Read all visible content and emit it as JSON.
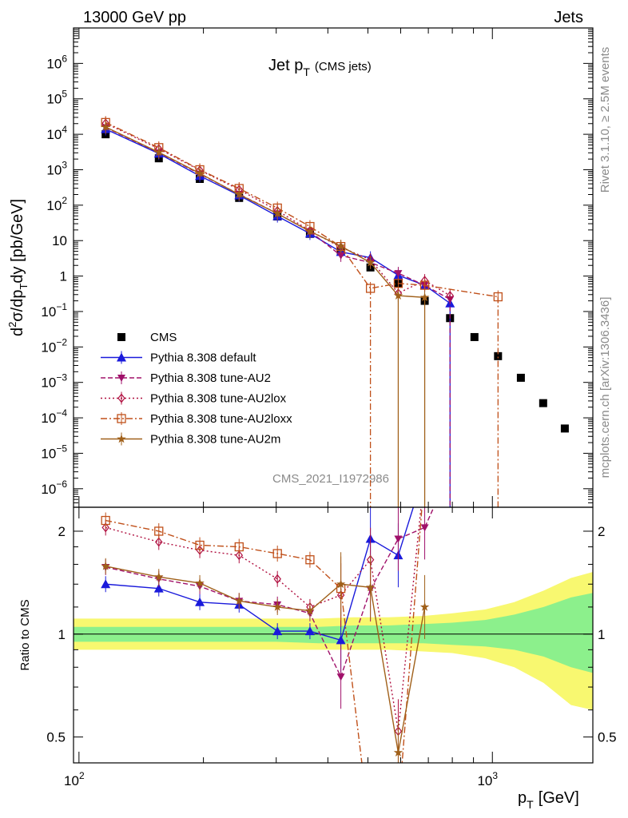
{
  "header": {
    "left": "13000 GeV pp",
    "right": "Jets"
  },
  "side": {
    "rivet": "Rivet 3.1.10, ≥ 2.5M events",
    "mcplots": "mcplots.cern.ch [arXiv:1306.3436]"
  },
  "watermark": "CMS_2021_I1972986",
  "colors": {
    "data": "#000000",
    "default": "#1a1adb",
    "au2": "#a0106a",
    "au2lox": "#b01040",
    "au2loxx": "#c0501a",
    "au2m": "#a0601a",
    "band_inner": "#8cf08c",
    "band_outer": "#f8f870"
  },
  "chart_data": [
    {
      "type": "line",
      "title_main": "Jet p",
      "title_sub": "T",
      "title_extra": "(CMS jets)",
      "ylabel": "d²σ/dp_T dy [pb/GeV]",
      "ylabel_parts": {
        "a": "d",
        "b": "2",
        "c": "σ/dp",
        "d": "T",
        "e": "dy [pb/GeV]"
      },
      "xscale": "log",
      "yscale": "log",
      "xlim": [
        97,
        1750
      ],
      "ylim": [
        3e-07,
        10000000.0
      ],
      "yticks": [
        {
          "v": 1e-06,
          "base": "10",
          "exp": "−6"
        },
        {
          "v": 1e-05,
          "base": "10",
          "exp": "−5"
        },
        {
          "v": 0.0001,
          "base": "10",
          "exp": "−4"
        },
        {
          "v": 0.001,
          "base": "10",
          "exp": "−3"
        },
        {
          "v": 0.01,
          "base": "10",
          "exp": "−2"
        },
        {
          "v": 0.1,
          "base": "10",
          "exp": "−1"
        },
        {
          "v": 1,
          "base": "1",
          "exp": ""
        },
        {
          "v": 10,
          "base": "10",
          "exp": ""
        },
        {
          "v": 100,
          "base": "10",
          "exp": "2"
        },
        {
          "v": 1000,
          "base": "10",
          "exp": "3"
        },
        {
          "v": 10000,
          "base": "10",
          "exp": "4"
        },
        {
          "v": 100000,
          "base": "10",
          "exp": "5"
        },
        {
          "v": 1000000,
          "base": "10",
          "exp": "6"
        }
      ],
      "legend_position": "bottom-left",
      "series": [
        {
          "name": "CMS",
          "key": "data",
          "color": "#000000",
          "points": [
            [
              116,
              10000.0
            ],
            [
              156,
              2100.0
            ],
            [
              196,
              550.0
            ],
            [
              244,
              160.0
            ],
            [
              302,
              48
            ],
            [
              362,
              15.5
            ],
            [
              430,
              5.0
            ],
            [
              507,
              1.75
            ],
            [
              592,
              0.62
            ],
            [
              686,
              0.2
            ],
            [
              790,
              0.065
            ],
            [
              905,
              0.019
            ],
            [
              1032,
              0.0055
            ],
            [
              1172,
              0.00135
            ],
            [
              1327,
              0.00026
            ],
            [
              1497,
              5e-05
            ]
          ]
        },
        {
          "name": "Pythia 8.308 default",
          "key": "default",
          "color": "#1a1adb",
          "points": [
            [
              116,
              14000.0
            ],
            [
              156,
              2850.0
            ],
            [
              196,
              670.0
            ],
            [
              244,
              190.0
            ],
            [
              302,
              49
            ],
            [
              362,
              15.8
            ],
            [
              430,
              4.8
            ],
            [
              507,
              3.3
            ],
            [
              592,
              1.05
            ],
            [
              686,
              0.55
            ],
            [
              790,
              0.17
            ]
          ]
        },
        {
          "name": "Pythia 8.308 tune-AU2",
          "key": "au2",
          "color": "#a0106a",
          "points": [
            [
              116,
              15500.0
            ],
            [
              156,
              3050.0
            ],
            [
              196,
              760.0
            ],
            [
              244,
              205.0
            ],
            [
              302,
              58
            ],
            [
              362,
              18.2
            ],
            [
              430,
              3.8
            ],
            [
              507,
              2.4
            ],
            [
              592,
              1.2
            ],
            [
              686,
              0.55
            ],
            [
              790,
              0.22
            ]
          ]
        },
        {
          "name": "Pythia 8.308 tune-AU2lox",
          "key": "au2lox",
          "color": "#b01040",
          "points": [
            [
              116,
              20500.0
            ],
            [
              156,
              3900.0
            ],
            [
              196,
              970.0
            ],
            [
              244,
              275.0
            ],
            [
              302,
              70
            ],
            [
              362,
              19
            ],
            [
              430,
              6.5
            ],
            [
              507,
              2.9
            ],
            [
              592,
              0.33
            ],
            [
              686,
              0.75
            ],
            [
              790,
              0.28
            ]
          ]
        },
        {
          "name": "Pythia 8.308 tune-AU2loxx",
          "key": "au2loxx",
          "color": "#c0501a",
          "points": [
            [
              116,
              21500.0
            ],
            [
              156,
              4200.0
            ],
            [
              196,
              1000.0
            ],
            [
              244,
              295.0
            ],
            [
              302,
              83
            ],
            [
              362,
              25
            ],
            [
              430,
              6.8
            ],
            [
              507,
              0.45
            ],
            [
              592,
              0.62
            ],
            [
              686,
              0.55
            ],
            [
              1032,
              0.26
            ]
          ]
        },
        {
          "name": "Pythia 8.308 tune-AU2m",
          "key": "au2m",
          "color": "#a0601a",
          "points": [
            [
              116,
              16000.0
            ],
            [
              156,
              3100.0
            ],
            [
              196,
              790.0
            ],
            [
              244,
              200.0
            ],
            [
              302,
              58
            ],
            [
              362,
              18.2
            ],
            [
              430,
              7.0
            ],
            [
              507,
              2.4
            ],
            [
              592,
              0.28
            ],
            [
              686,
              0.25
            ]
          ]
        }
      ]
    },
    {
      "type": "line",
      "ylabel": "Ratio to CMS",
      "xlabel_main": "p",
      "xlabel_sub": "T",
      "xlabel_unit": "[GeV]",
      "xscale": "log",
      "yscale": "log",
      "xlim": [
        97,
        1750
      ],
      "ylim": [
        0.42,
        2.35
      ],
      "yticks": [
        {
          "v": 0.5,
          "label": "0.5"
        },
        {
          "v": 1,
          "label": "1"
        },
        {
          "v": 2,
          "label": "2"
        }
      ],
      "xticks": [
        {
          "v": 100,
          "base": "10",
          "exp": "2"
        },
        {
          "v": 1000,
          "base": "10",
          "exp": "3"
        }
      ],
      "uncertainty_band": {
        "x": [
          97,
          140,
          180,
          240,
          300,
          380,
          460,
          560,
          680,
          800,
          960,
          1130,
          1330,
          1550,
          1750
        ],
        "inner_low": [
          0.95,
          0.95,
          0.95,
          0.95,
          0.95,
          0.94,
          0.94,
          0.94,
          0.94,
          0.93,
          0.92,
          0.9,
          0.86,
          0.8,
          0.77
        ],
        "inner_high": [
          1.05,
          1.05,
          1.05,
          1.05,
          1.05,
          1.05,
          1.06,
          1.06,
          1.07,
          1.08,
          1.1,
          1.14,
          1.2,
          1.28,
          1.32
        ],
        "outer_low": [
          0.9,
          0.9,
          0.9,
          0.9,
          0.9,
          0.9,
          0.9,
          0.9,
          0.89,
          0.88,
          0.85,
          0.8,
          0.72,
          0.62,
          0.6
        ],
        "outer_high": [
          1.11,
          1.11,
          1.11,
          1.11,
          1.11,
          1.11,
          1.12,
          1.12,
          1.13,
          1.15,
          1.18,
          1.24,
          1.34,
          1.46,
          1.52
        ]
      },
      "series": [
        {
          "name": "Pythia 8.308 default",
          "key": "default",
          "color": "#1a1adb",
          "points": [
            [
              116,
              1.4
            ],
            [
              156,
              1.36
            ],
            [
              196,
              1.24
            ],
            [
              244,
              1.22
            ],
            [
              302,
              1.02
            ],
            [
              362,
              1.02
            ],
            [
              430,
              0.96
            ],
            [
              507,
              1.9
            ],
            [
              592,
              1.7
            ],
            [
              686,
              3.0
            ]
          ]
        },
        {
          "name": "Pythia 8.308 tune-AU2",
          "key": "au2",
          "color": "#a0106a",
          "points": [
            [
              116,
              1.57
            ],
            [
              156,
              1.45
            ],
            [
              196,
              1.38
            ],
            [
              244,
              1.25
            ],
            [
              302,
              1.22
            ],
            [
              362,
              1.15
            ],
            [
              430,
              0.75
            ],
            [
              507,
              1.35
            ],
            [
              592,
              1.9
            ],
            [
              686,
              2.05
            ],
            [
              790,
              3.0
            ]
          ]
        },
        {
          "name": "Pythia 8.308 tune-AU2lox",
          "key": "au2lox",
          "color": "#b01040",
          "points": [
            [
              116,
              2.05
            ],
            [
              156,
              1.86
            ],
            [
              196,
              1.76
            ],
            [
              244,
              1.7
            ],
            [
              302,
              1.45
            ],
            [
              362,
              1.2
            ],
            [
              430,
              1.3
            ],
            [
              507,
              1.65
            ],
            [
              592,
              0.52
            ],
            [
              686,
              3.0
            ]
          ]
        },
        {
          "name": "Pythia 8.308 tune-AU2loxx",
          "key": "au2loxx",
          "color": "#c0501a",
          "points": [
            [
              116,
              2.15
            ],
            [
              156,
              2.0
            ],
            [
              196,
              1.82
            ],
            [
              244,
              1.8
            ],
            [
              302,
              1.72
            ],
            [
              362,
              1.65
            ],
            [
              430,
              1.36
            ],
            [
              507,
              0.26
            ],
            [
              592,
              0.3
            ],
            [
              686,
              3.0
            ]
          ]
        },
        {
          "name": "Pythia 8.308 tune-AU2m",
          "key": "au2m",
          "color": "#a0601a",
          "points": [
            [
              116,
              1.58
            ],
            [
              156,
              1.47
            ],
            [
              196,
              1.41
            ],
            [
              244,
              1.25
            ],
            [
              302,
              1.2
            ],
            [
              362,
              1.17
            ],
            [
              430,
              1.4
            ],
            [
              507,
              1.37
            ],
            [
              592,
              0.45
            ],
            [
              686,
              1.2
            ]
          ]
        }
      ]
    }
  ]
}
